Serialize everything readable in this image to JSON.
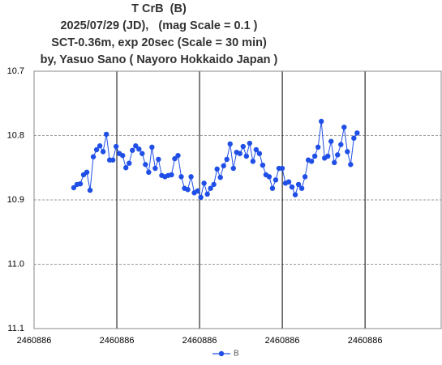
{
  "chart_data": {
    "type": "line",
    "title_lines": [
      "T CrB  (B)",
      "2025/07/29 (JD),   (mag Scale = 0.1 )",
      "SCT-0.36m, exp 20sec (Scale = 30 min)",
      "by, Yasuo Sano ( Nayoro Hokkaido Japan )"
    ],
    "x": [
      2460886.01,
      2460886.01082,
      2460886.01164,
      2460886.01246,
      2460886.01328,
      2460886.0141,
      2460886.01492,
      2460886.01574,
      2460886.01656,
      2460886.01738,
      2460886.0182,
      2460886.01902,
      2460886.01984,
      2460886.02066,
      2460886.02148,
      2460886.0223,
      2460886.02312,
      2460886.02394,
      2460886.02476,
      2460886.02558,
      2460886.0264,
      2460886.02722,
      2460886.02804,
      2460886.02886,
      2460886.02968,
      2460886.0305,
      2460886.03132,
      2460886.03214,
      2460886.03296,
      2460886.03378,
      2460886.0346,
      2460886.03542,
      2460886.03624,
      2460886.03706,
      2460886.03788,
      2460886.0387,
      2460886.03952,
      2460886.04034,
      2460886.04116,
      2460886.04198,
      2460886.0428,
      2460886.04362,
      2460886.04444,
      2460886.04526,
      2460886.04608,
      2460886.0469,
      2460886.04772,
      2460886.04854,
      2460886.04936,
      2460886.05018,
      2460886.051,
      2460886.05182,
      2460886.05264,
      2460886.05346,
      2460886.05428,
      2460886.0551,
      2460886.05592,
      2460886.05674,
      2460886.05756,
      2460886.05838,
      2460886.0592,
      2460886.06002,
      2460886.06084,
      2460886.06166,
      2460886.06248,
      2460886.0633,
      2460886.06412,
      2460886.06494,
      2460886.06576,
      2460886.06658,
      2460886.0674,
      2460886.06822,
      2460886.06904,
      2460886.06986,
      2460886.07068,
      2460886.0715,
      2460886.07232,
      2460886.07314,
      2460886.07396,
      2460886.07478,
      2460886.0756,
      2460886.07642,
      2460886.07724,
      2460886.07806,
      2460886.07888,
      2460886.0797,
      2460886.08052,
      2460886.08134
    ],
    "series": [
      {
        "name": "B",
        "color": "#1f4fe6",
        "values": [
          10.881,
          10.876,
          10.875,
          10.861,
          10.857,
          10.885,
          10.833,
          10.822,
          10.816,
          10.825,
          10.798,
          10.838,
          10.838,
          10.817,
          10.828,
          10.831,
          10.85,
          10.843,
          10.823,
          10.816,
          10.821,
          10.828,
          10.845,
          10.857,
          10.818,
          10.851,
          10.837,
          10.862,
          10.864,
          10.862,
          10.861,
          10.836,
          10.831,
          10.864,
          10.882,
          10.884,
          10.864,
          10.889,
          10.886,
          10.896,
          10.874,
          10.891,
          10.882,
          10.876,
          10.852,
          10.865,
          10.847,
          10.837,
          10.813,
          10.851,
          10.826,
          10.828,
          10.817,
          10.832,
          10.812,
          10.84,
          10.822,
          10.828,
          10.846,
          10.861,
          10.864,
          10.882,
          10.869,
          10.851,
          10.851,
          10.874,
          10.872,
          10.88,
          10.892,
          10.876,
          10.882,
          10.864,
          10.838,
          10.84,
          10.832,
          10.818,
          10.778,
          10.835,
          10.832,
          10.809,
          10.842,
          10.83,
          10.814,
          10.787,
          10.825,
          10.845,
          10.804,
          10.796
        ]
      }
    ],
    "xlim": [
      2460886.0,
      2460886.1025
    ],
    "xticks": [
      {
        "value": 2460886.0,
        "label": "2460886"
      },
      {
        "value": 2460886.020833,
        "label": "2460886"
      },
      {
        "value": 2460886.041667,
        "label": "2460886"
      },
      {
        "value": 2460886.0625,
        "label": "2460886"
      },
      {
        "value": 2460886.083333,
        "label": "2460886"
      }
    ],
    "ylim": [
      10.7,
      11.1
    ],
    "y_inverted": true,
    "yticks": [
      10.7,
      10.8,
      10.9,
      {
        "value": 11,
        "label": "11.0"
      },
      11.1
    ],
    "grid": true,
    "legend": "bottom"
  }
}
